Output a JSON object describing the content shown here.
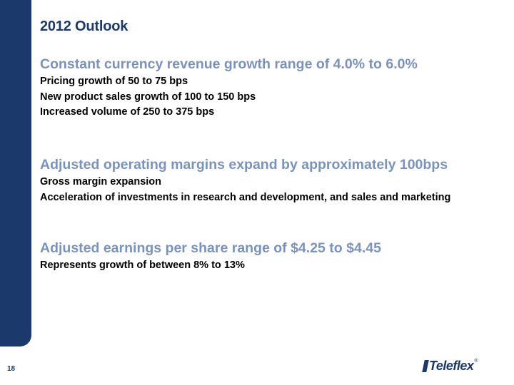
{
  "slide": {
    "title": "2012 Outlook",
    "page_number": "18"
  },
  "sections": [
    {
      "heading": "Constant currency revenue growth range of 4.0% to 6.0%",
      "points": [
        "Pricing growth of 50 to 75 bps",
        "New product sales growth of 100 to 150 bps",
        "Increased volume of 250 to 375 bps"
      ]
    },
    {
      "heading": "Adjusted operating margins expand by approximately 100bps",
      "points": [
        "Gross margin expansion",
        "Acceleration of investments in research and development, and sales and marketing"
      ]
    },
    {
      "heading": "Adjusted earnings per share range of $4.25 to $4.45",
      "points": [
        "Represents growth of between 8% to 13%"
      ]
    }
  ],
  "logo": {
    "text": "Teleflex",
    "mark": "®"
  },
  "colors": {
    "brand_navy": "#1b3a6b",
    "heading_blue": "#7a93ba"
  }
}
